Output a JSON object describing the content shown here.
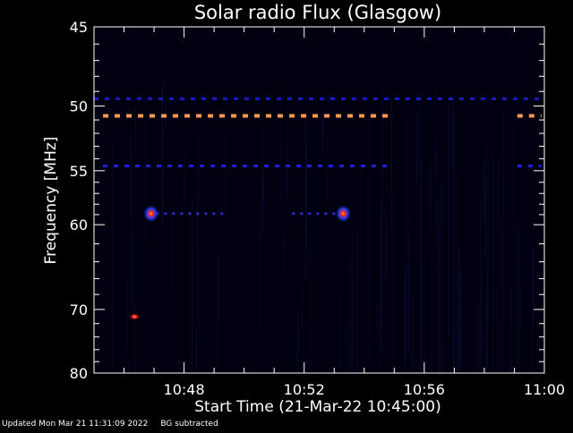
{
  "chart_data": {
    "type": "heatmap",
    "title": "Solar radio Flux (Glasgow)",
    "xlabel": "Start Time (21-Mar-22 10:45:00)",
    "ylabel": "Frequency [MHz]",
    "x_ticks": [
      "10:48",
      "10:52",
      "10:56",
      "11:00"
    ],
    "x_tick_minutes": [
      3,
      7,
      11,
      15
    ],
    "xlim_minutes": [
      0,
      15
    ],
    "y_ticks": [
      45,
      50,
      55,
      60,
      70,
      80
    ],
    "ylim": [
      45,
      80
    ],
    "y_scale": "reciprocal",
    "grid": false,
    "colormap": [
      "#000010",
      "#0a0a60",
      "#1010c0",
      "#3050ff",
      "#ff2010",
      "#ffa060"
    ],
    "features": [
      {
        "type": "dashed-band",
        "freq": 49.5,
        "t_start": 0,
        "t_end": 15,
        "intensity": "low",
        "color": "#1a1ac8"
      },
      {
        "type": "dashed-band",
        "freq": 50.7,
        "t_start": 0.3,
        "t_end": 9.9,
        "intensity": "high",
        "color": "#ff9a55"
      },
      {
        "type": "dashed-band",
        "freq": 50.7,
        "t_start": 14.1,
        "t_end": 14.9,
        "intensity": "high",
        "color": "#ff9a55"
      },
      {
        "type": "dashed-band",
        "freq": 54.6,
        "t_start": 0.3,
        "t_end": 9.9,
        "intensity": "medium",
        "color": "#1e1ee0"
      },
      {
        "type": "dashed-band",
        "freq": 54.6,
        "t_start": 14.1,
        "t_end": 14.9,
        "intensity": "medium",
        "color": "#1e1ee0"
      },
      {
        "type": "dotted-band",
        "freq": 58.9,
        "t_start": 1.8,
        "t_end": 4.3,
        "intensity": "low",
        "color": "#2828d0"
      },
      {
        "type": "dotted-band",
        "freq": 58.9,
        "t_start": 6.6,
        "t_end": 8.2,
        "intensity": "low",
        "color": "#2828d0"
      },
      {
        "type": "burst",
        "t": 1.9,
        "freq": 58.9,
        "intensity": "high"
      },
      {
        "type": "burst",
        "t": 8.3,
        "freq": 58.9,
        "intensity": "high"
      },
      {
        "type": "burst",
        "t": 1.35,
        "freq": 71.0,
        "intensity": "medium"
      }
    ]
  },
  "footer": {
    "updated": "Updated Mon Mar 21 11:31:09 2022",
    "note": "BG subtracted"
  }
}
